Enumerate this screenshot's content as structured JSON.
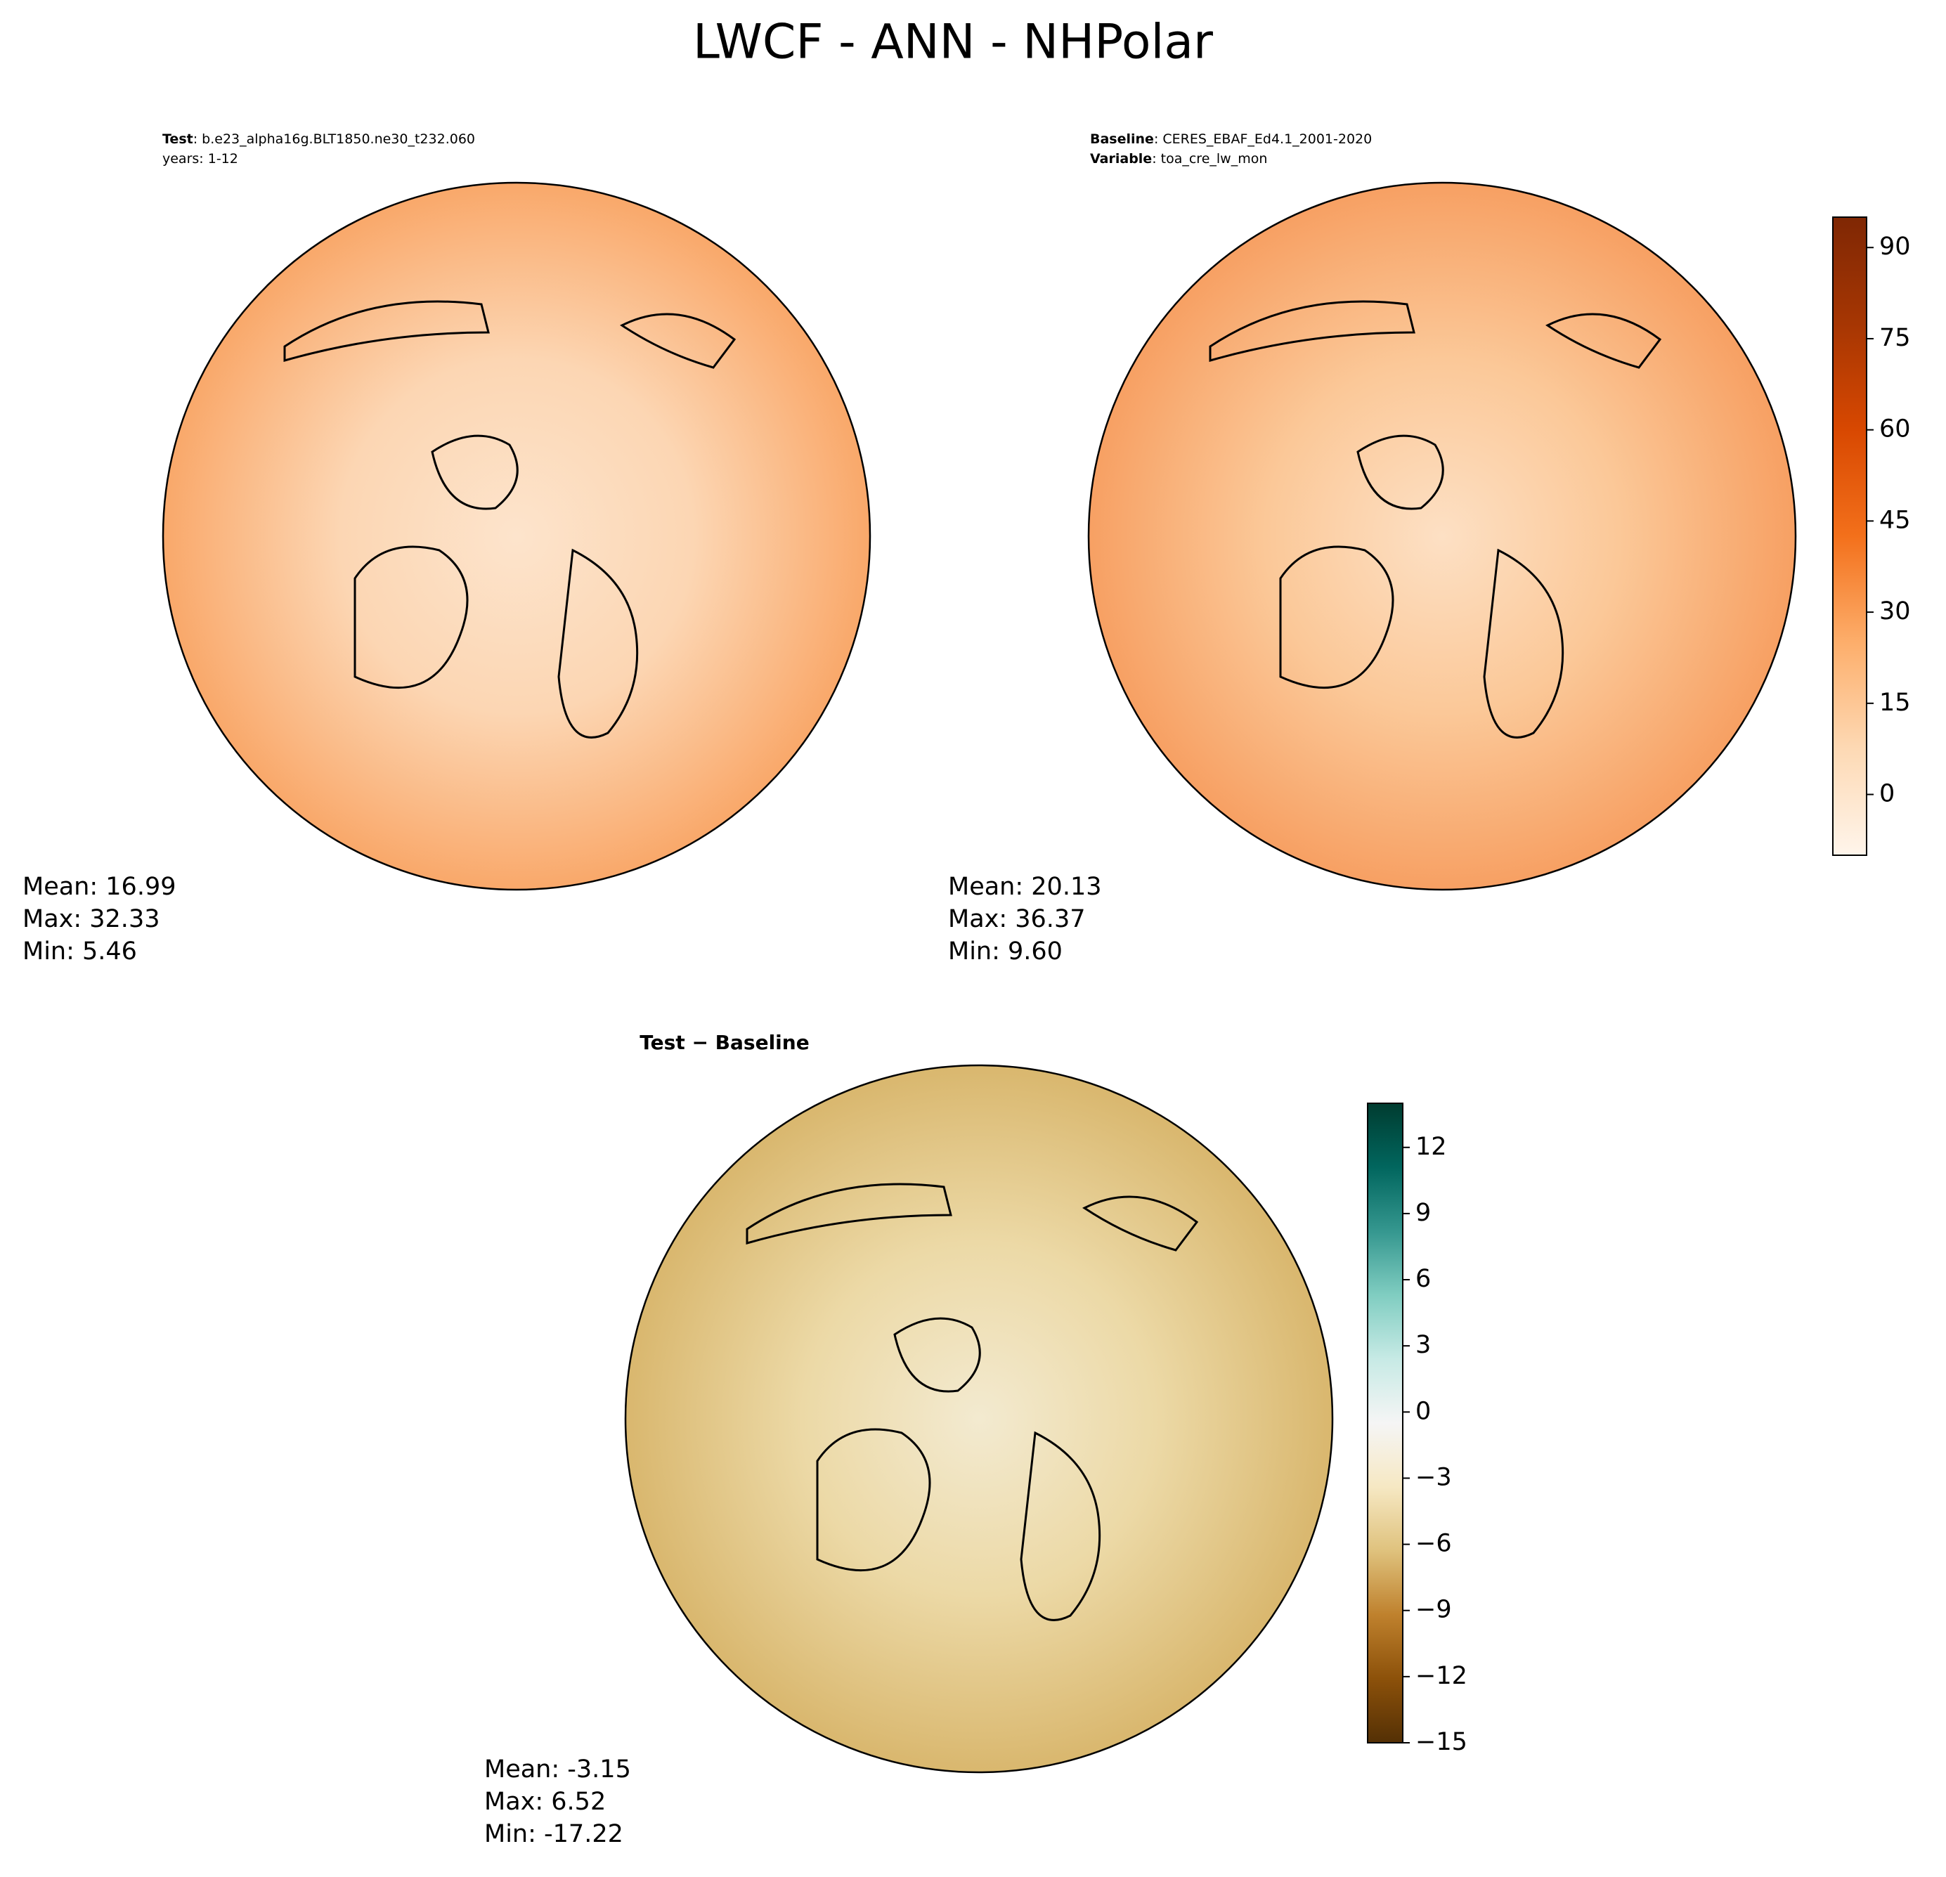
{
  "title": "LWCF - ANN - NHPolar",
  "chart_data": [
    {
      "type": "map",
      "header": [
        {
          "label": "Test",
          "text": ": b.e23_alpha16g.BLT1850.ne30_t232.060"
        },
        {
          "text": "years: 1-12"
        }
      ],
      "stats": [
        "Mean: 16.99",
        "Max: 32.33",
        "Min:  5.46"
      ],
      "map_colors": [
        "#f9a86a",
        "#fcd6b3",
        "#fde4cc"
      ]
    },
    {
      "type": "map",
      "header": [
        {
          "label": "Baseline",
          "text": ": CERES_EBAF_Ed4.1_2001-2020"
        },
        {
          "label": "Variable",
          "text": ": toa_cre_lw_mon"
        }
      ],
      "stats": [
        "Mean: 20.13",
        "Max: 36.37",
        "Min:  9.60"
      ],
      "map_colors": [
        "#f7a063",
        "#fbc898",
        "#fde0c4"
      ],
      "colorbar": {
        "lim": [
          -10,
          95
        ],
        "ticks": [
          0,
          15,
          30,
          45,
          60,
          75,
          90
        ],
        "colors": [
          "#fff5eb",
          "#fdd9b4",
          "#fdae6b",
          "#f3701b",
          "#d84801",
          "#a63603",
          "#7f2704"
        ]
      }
    },
    {
      "type": "map",
      "header": [
        {
          "label": "Test − Baseline"
        }
      ],
      "stats": [
        "Mean: -3.15",
        "Max:  6.52",
        "Min: -17.22"
      ],
      "map_colors": [
        "#d9b76e",
        "#ecd9a6",
        "#f3ead0"
      ],
      "colorbar": {
        "lim": [
          -15,
          14
        ],
        "ticks": [
          {
            "value": -15,
            "label": "−15"
          },
          {
            "value": -12,
            "label": "−12"
          },
          {
            "value": -9,
            "label": "−9"
          },
          {
            "value": -6,
            "label": "−6"
          },
          {
            "value": -3,
            "label": "−3"
          },
          0,
          3,
          6,
          9,
          12
        ],
        "colors": [
          "#543005",
          "#8c510a",
          "#bf812d",
          "#dfc27d",
          "#f6e8c3",
          "#f5f5f5",
          "#c7eae5",
          "#80cdc1",
          "#35978f",
          "#01665e",
          "#003c30"
        ]
      }
    }
  ]
}
